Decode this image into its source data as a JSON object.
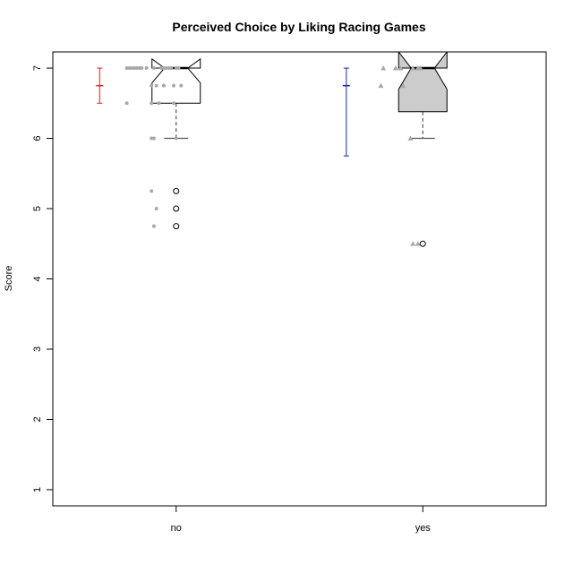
{
  "chart_data": {
    "type": "boxplot",
    "title": "Perceived Choice by Liking Racing Games",
    "xlabel": "",
    "ylabel": "Score",
    "categories": [
      "no",
      "yes"
    ],
    "y_ticks": [
      1,
      2,
      3,
      4,
      5,
      6,
      7
    ],
    "ylim": [
      0.77,
      7.23
    ],
    "groups": [
      {
        "category": "no",
        "point_marker": "circle",
        "box_fill": "#ffffff",
        "error_bar_color": "#dd2222",
        "box": {
          "whisker_low": 6.0,
          "q1": 6.5,
          "median": 7.0,
          "q3": 7.0,
          "whisker_high": 7.0,
          "notch_low": 6.79,
          "notch_high": 7.13,
          "outliers": [
            5.25,
            5.0,
            4.75
          ]
        },
        "error_bar": {
          "center": 6.75,
          "low": 6.5,
          "high": 7.0
        },
        "points": [
          {
            "x": 0.8,
            "y": 7.0
          },
          {
            "x": 0.81,
            "y": 7.0
          },
          {
            "x": 0.82,
            "y": 7.0
          },
          {
            "x": 0.83,
            "y": 7.0
          },
          {
            "x": 0.84,
            "y": 7.0
          },
          {
            "x": 0.85,
            "y": 7.0
          },
          {
            "x": 0.86,
            "y": 7.0
          },
          {
            "x": 0.88,
            "y": 7.0
          },
          {
            "x": 0.91,
            "y": 7.0
          },
          {
            "x": 0.94,
            "y": 7.0
          },
          {
            "x": 0.95,
            "y": 7.0
          },
          {
            "x": 0.96,
            "y": 7.0
          },
          {
            "x": 0.97,
            "y": 7.0
          },
          {
            "x": 0.98,
            "y": 7.0
          },
          {
            "x": 1.0,
            "y": 7.0
          },
          {
            "x": 1.01,
            "y": 7.0
          },
          {
            "x": 0.9,
            "y": 6.75
          },
          {
            "x": 0.92,
            "y": 6.75
          },
          {
            "x": 0.95,
            "y": 6.75
          },
          {
            "x": 0.99,
            "y": 6.75
          },
          {
            "x": 1.02,
            "y": 6.75
          },
          {
            "x": 0.8,
            "y": 6.5
          },
          {
            "x": 0.9,
            "y": 6.5
          },
          {
            "x": 0.93,
            "y": 6.5
          },
          {
            "x": 0.99,
            "y": 6.5
          },
          {
            "x": 0.9,
            "y": 6.0
          },
          {
            "x": 0.91,
            "y": 6.0
          },
          {
            "x": 1.0,
            "y": 6.0
          },
          {
            "x": 0.9,
            "y": 5.25
          },
          {
            "x": 0.92,
            "y": 5.0
          },
          {
            "x": 0.91,
            "y": 4.75
          }
        ]
      },
      {
        "category": "yes",
        "point_marker": "triangle",
        "box_fill": "#cccccc",
        "error_bar_color": "#1f1fbb",
        "box": {
          "whisker_low": 6.0,
          "q1": 6.38,
          "median": 7.0,
          "q3": 7.0,
          "whisker_high": 7.0,
          "notch_low": 6.7,
          "notch_high": 7.23,
          "outliers": [
            4.5
          ]
        },
        "error_bar": {
          "center": 6.75,
          "low": 5.75,
          "high": 7.0
        },
        "points": [
          {
            "x": 1.84,
            "y": 7.0
          },
          {
            "x": 1.89,
            "y": 7.0
          },
          {
            "x": 1.91,
            "y": 7.0
          },
          {
            "x": 1.96,
            "y": 7.0
          },
          {
            "x": 1.98,
            "y": 7.0
          },
          {
            "x": 1.99,
            "y": 7.0
          },
          {
            "x": 1.83,
            "y": 6.75
          },
          {
            "x": 1.92,
            "y": 6.75
          },
          {
            "x": 1.95,
            "y": 6.0
          },
          {
            "x": 1.96,
            "y": 4.5
          },
          {
            "x": 1.98,
            "y": 4.5
          }
        ]
      }
    ]
  }
}
